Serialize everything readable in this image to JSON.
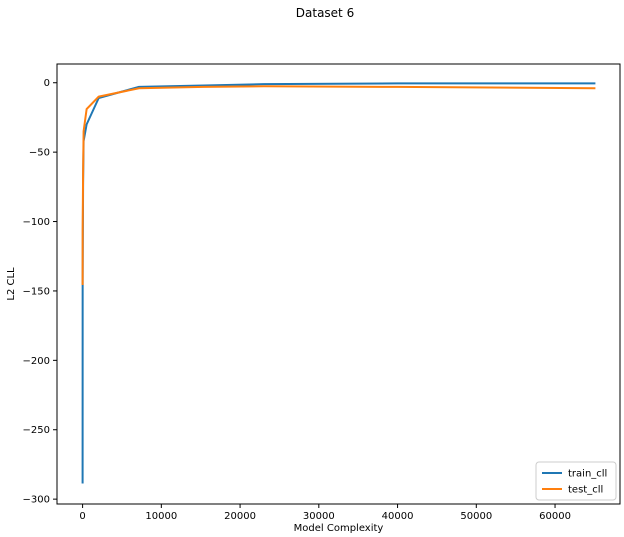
{
  "chart_data": {
    "type": "line",
    "title": "Dataset 6",
    "xlabel": "Model Complexity",
    "ylabel": "L2 CLL",
    "xlim": [
      -3250,
      68250
    ],
    "ylim": [
      -303.5,
      13.5
    ],
    "xticks": [
      0,
      10000,
      20000,
      30000,
      40000,
      50000,
      60000
    ],
    "yticks": [
      0,
      -50,
      -100,
      -150,
      -200,
      -250,
      -300
    ],
    "grid": false,
    "legend_position": "lower-right",
    "series": [
      {
        "name": "train_cll",
        "color": "#1f77b4",
        "x": [
          1,
          8,
          64,
          128,
          512,
          2048,
          7168,
          15360,
          23040,
          40000,
          65000
        ],
        "y": [
          -288,
          -146,
          -72,
          -42,
          -30,
          -11,
          -3,
          -2,
          -1,
          -0.5,
          -0.5
        ]
      },
      {
        "name": "test_cll",
        "color": "#ff7f0e",
        "x": [
          1,
          8,
          64,
          128,
          512,
          2048,
          7168,
          15360,
          23040,
          40000,
          65000
        ],
        "y": [
          -145,
          -106,
          -66,
          -35,
          -19,
          -10,
          -4,
          -3,
          -2.5,
          -3,
          -4
        ]
      }
    ]
  }
}
